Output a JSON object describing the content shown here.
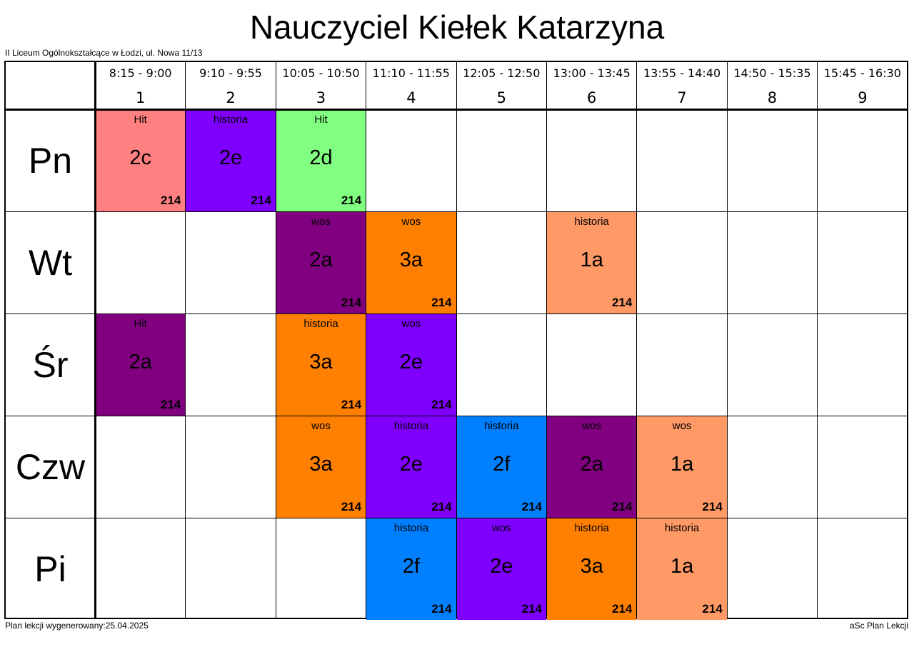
{
  "title": "Nauczyciel Kiełek Katarzyna",
  "school": "II Liceum Ogólnokształcące w Łodzi, ul. Nowa 11/13",
  "footer": {
    "generated": "Plan lekcji wygenerowany:25.04.2025",
    "app": "aSc Plan Lekcji"
  },
  "colors": {
    "salmon": "#ff8080",
    "violet": "#8000ff",
    "green": "#80ff80",
    "purple": "#800080",
    "orange": "#ff8000",
    "peach": "#ff9966",
    "blue": "#0080ff"
  },
  "periods": [
    {
      "num": "1",
      "time": "8:15 - 9:00"
    },
    {
      "num": "2",
      "time": "9:10 - 9:55"
    },
    {
      "num": "3",
      "time": "10:05 - 10:50"
    },
    {
      "num": "4",
      "time": "11:10 - 11:55"
    },
    {
      "num": "5",
      "time": "12:05 - 12:50"
    },
    {
      "num": "6",
      "time": "13:00 - 13:45"
    },
    {
      "num": "7",
      "time": "13:55 - 14:40"
    },
    {
      "num": "8",
      "time": "14:50 - 15:35"
    },
    {
      "num": "9",
      "time": "15:45 - 16:30"
    }
  ],
  "days": [
    {
      "name": "Pn",
      "lessons": [
        {
          "period": 1,
          "subject": "Hit",
          "class": "2c",
          "room": "214",
          "color": "#ff8080"
        },
        {
          "period": 2,
          "subject": "historia",
          "class": "2e",
          "room": "214",
          "color": "#8000ff"
        },
        {
          "period": 3,
          "subject": "Hit",
          "class": "2d",
          "room": "214",
          "color": "#80ff80"
        }
      ]
    },
    {
      "name": "Wt",
      "lessons": [
        {
          "period": 3,
          "subject": "wos",
          "class": "2a",
          "room": "214",
          "color": "#800080"
        },
        {
          "period": 4,
          "subject": "wos",
          "class": "3a",
          "room": "214",
          "color": "#ff8000"
        },
        {
          "period": 6,
          "subject": "historia",
          "class": "1a",
          "room": "214",
          "color": "#ff9966"
        }
      ]
    },
    {
      "name": "Śr",
      "lessons": [
        {
          "period": 1,
          "subject": "Hit",
          "class": "2a",
          "room": "214",
          "color": "#800080"
        },
        {
          "period": 3,
          "subject": "historia",
          "class": "3a",
          "room": "214",
          "color": "#ff8000"
        },
        {
          "period": 4,
          "subject": "wos",
          "class": "2e",
          "room": "214",
          "color": "#8000ff"
        }
      ]
    },
    {
      "name": "Czw",
      "lessons": [
        {
          "period": 3,
          "subject": "wos",
          "class": "3a",
          "room": "214",
          "color": "#ff8000"
        },
        {
          "period": 4,
          "subject": "historia",
          "class": "2e",
          "room": "214",
          "color": "#8000ff"
        },
        {
          "period": 5,
          "subject": "historia",
          "class": "2f",
          "room": "214",
          "color": "#0080ff"
        },
        {
          "period": 6,
          "subject": "wos",
          "class": "2a",
          "room": "214",
          "color": "#800080"
        },
        {
          "period": 7,
          "subject": "wos",
          "class": "1a",
          "room": "214",
          "color": "#ff9966"
        }
      ]
    },
    {
      "name": "Pi",
      "lessons": [
        {
          "period": 4,
          "subject": "historia",
          "class": "2f",
          "room": "214",
          "color": "#0080ff"
        },
        {
          "period": 5,
          "subject": "wos",
          "class": "2e",
          "room": "214",
          "color": "#8000ff"
        },
        {
          "period": 6,
          "subject": "historia",
          "class": "3a",
          "room": "214",
          "color": "#ff8000"
        },
        {
          "period": 7,
          "subject": "historia",
          "class": "1a",
          "room": "214",
          "color": "#ff9966"
        }
      ]
    }
  ]
}
